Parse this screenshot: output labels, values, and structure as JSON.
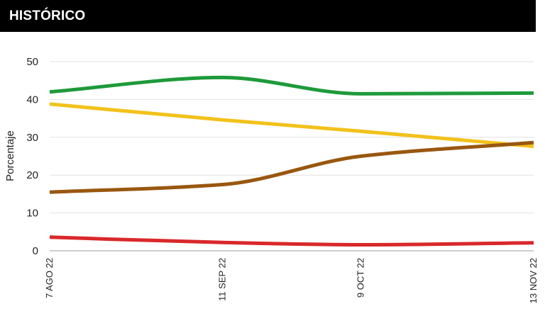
{
  "header": {
    "title": "HISTÓRICO",
    "background": "#000000",
    "text_color": "#ffffff"
  },
  "chart_data": {
    "type": "line",
    "title": "HISTÓRICO",
    "xlabel": "",
    "ylabel": "Porcentaje",
    "categories": [
      "7 AGO 22",
      "11 SEP 22",
      "9 OCT 22",
      "13 NOV 22"
    ],
    "x_days": [
      0,
      35,
      63,
      98
    ],
    "ylim": [
      0,
      50
    ],
    "yticks": [
      0,
      10,
      20,
      30,
      40,
      50
    ],
    "grid": true,
    "legend": "none",
    "series": [
      {
        "color": "#1e9a3a",
        "values": [
          42.0,
          45.8,
          41.5,
          41.7
        ]
      },
      {
        "color": "#f2c21b",
        "values": [
          38.8,
          34.6,
          31.6,
          27.6
        ]
      },
      {
        "color": "#99570f",
        "values": [
          15.5,
          17.5,
          25.0,
          28.6
        ]
      },
      {
        "color": "#d9282b",
        "values": [
          3.6,
          2.2,
          1.6,
          2.1
        ]
      }
    ]
  }
}
